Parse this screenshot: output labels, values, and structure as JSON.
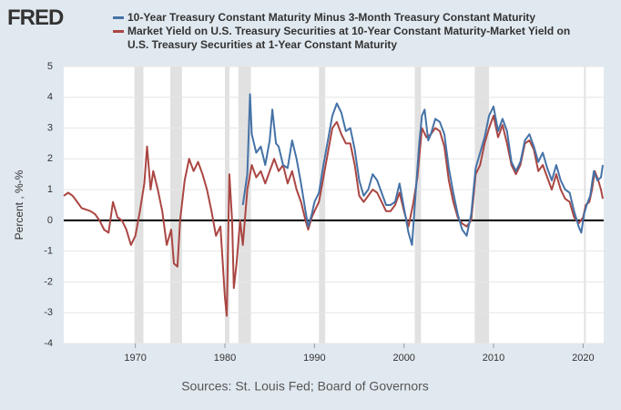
{
  "chart_data": {
    "type": "line",
    "logo": "FRED",
    "y_label": "Percent , %-%",
    "source": "Sources: St. Louis Fed; Board of Governors",
    "xlim": [
      1962,
      2022.3
    ],
    "xticks": [
      1970,
      1980,
      1990,
      2000,
      2010,
      2020
    ],
    "ylim": [
      -4,
      5
    ],
    "yticks": [
      -4,
      -3,
      -2,
      -1,
      0,
      1,
      2,
      3,
      4,
      5
    ],
    "grid": true,
    "recessions": [
      [
        1969.9,
        1970.9
      ],
      [
        1973.9,
        1975.2
      ],
      [
        1980.0,
        1980.5
      ],
      [
        1981.5,
        1982.9
      ],
      [
        1990.5,
        1991.2
      ],
      [
        2001.2,
        2001.9
      ],
      [
        2007.9,
        2009.5
      ],
      [
        2020.1,
        2020.3
      ]
    ],
    "series": [
      {
        "name": "10-Year Treasury Constant Maturity Minus 3-Month Treasury Constant Maturity",
        "color": "#4572a7",
        "x": [
          1982.0,
          1982.5,
          1982.8,
          1983.0,
          1983.5,
          1984.0,
          1984.5,
          1985.0,
          1985.3,
          1985.7,
          1986.0,
          1986.5,
          1987.0,
          1987.5,
          1988.0,
          1988.5,
          1989.0,
          1989.3,
          1989.7,
          1990.0,
          1990.5,
          1991.0,
          1991.5,
          1992.0,
          1992.5,
          1993.0,
          1993.5,
          1994.0,
          1994.5,
          1995.0,
          1995.5,
          1996.0,
          1996.5,
          1997.0,
          1997.5,
          1998.0,
          1998.5,
          1999.0,
          1999.5,
          2000.0,
          2000.5,
          2000.9,
          2001.3,
          2001.7,
          2002.0,
          2002.3,
          2002.7,
          2003.0,
          2003.5,
          2004.0,
          2004.5,
          2005.0,
          2005.5,
          2006.0,
          2006.5,
          2007.0,
          2007.5,
          2008.0,
          2008.5,
          2009.0,
          2009.5,
          2010.0,
          2010.5,
          2011.0,
          2011.5,
          2012.0,
          2012.5,
          2013.0,
          2013.5,
          2014.0,
          2014.5,
          2015.0,
          2015.5,
          2016.0,
          2016.5,
          2017.0,
          2017.5,
          2018.0,
          2018.5,
          2019.0,
          2019.5,
          2019.8,
          2020.1,
          2020.4,
          2020.8,
          2021.2,
          2021.6,
          2022.0,
          2022.2
        ],
        "values": [
          0.5,
          1.5,
          4.1,
          2.8,
          2.2,
          2.4,
          1.8,
          2.6,
          3.6,
          2.5,
          2.4,
          1.8,
          1.7,
          2.6,
          2.0,
          1.2,
          0.3,
          -0.2,
          0.2,
          0.6,
          0.9,
          1.8,
          2.6,
          3.4,
          3.8,
          3.5,
          2.9,
          3.0,
          2.3,
          1.3,
          0.8,
          1.0,
          1.5,
          1.3,
          0.9,
          0.5,
          0.5,
          0.6,
          1.2,
          0.4,
          -0.4,
          -0.8,
          0.9,
          2.5,
          3.4,
          3.6,
          2.6,
          2.8,
          3.3,
          3.2,
          2.8,
          1.7,
          0.9,
          0.2,
          -0.3,
          -0.5,
          0.2,
          1.7,
          2.2,
          2.7,
          3.4,
          3.7,
          2.9,
          3.3,
          2.9,
          1.9,
          1.6,
          1.9,
          2.6,
          2.8,
          2.4,
          1.9,
          2.2,
          1.7,
          1.3,
          1.8,
          1.3,
          1.0,
          0.9,
          0.3,
          -0.2,
          -0.4,
          0.2,
          0.5,
          0.8,
          1.6,
          1.3,
          1.4,
          1.8
        ]
      },
      {
        "name": "Market Yield on U.S. Treasury Securities at 10-Year Constant Maturity-Market Yield on U.S. Treasury Securities at 1-Year Constant Maturity",
        "color": "#aa4643",
        "x": [
          1962.0,
          1962.5,
          1963.0,
          1963.5,
          1964.0,
          1964.5,
          1965.0,
          1965.5,
          1966.0,
          1966.5,
          1967.0,
          1967.5,
          1968.0,
          1968.5,
          1969.0,
          1969.5,
          1970.0,
          1970.5,
          1971.0,
          1971.3,
          1971.7,
          1972.0,
          1972.5,
          1973.0,
          1973.5,
          1974.0,
          1974.3,
          1974.7,
          1975.0,
          1975.5,
          1976.0,
          1976.5,
          1977.0,
          1977.5,
          1978.0,
          1978.5,
          1979.0,
          1979.5,
          1980.0,
          1980.2,
          1980.5,
          1980.8,
          1981.0,
          1981.3,
          1981.7,
          1982.0,
          1982.5,
          1983.0,
          1983.5,
          1984.0,
          1984.5,
          1985.0,
          1985.5,
          1986.0,
          1986.5,
          1987.0,
          1987.5,
          1988.0,
          1988.5,
          1989.0,
          1989.3,
          1989.7,
          1990.0,
          1990.5,
          1991.0,
          1991.5,
          1992.0,
          1992.5,
          1993.0,
          1993.5,
          1994.0,
          1994.5,
          1995.0,
          1995.5,
          1996.0,
          1996.5,
          1997.0,
          1997.5,
          1998.0,
          1998.5,
          1999.0,
          1999.5,
          2000.0,
          2000.5,
          2001.0,
          2001.5,
          2002.0,
          2002.5,
          2003.0,
          2003.5,
          2004.0,
          2004.5,
          2005.0,
          2005.5,
          2006.0,
          2006.5,
          2007.0,
          2007.5,
          2008.0,
          2008.5,
          2009.0,
          2009.5,
          2010.0,
          2010.5,
          2011.0,
          2011.5,
          2012.0,
          2012.5,
          2013.0,
          2013.5,
          2014.0,
          2014.5,
          2015.0,
          2015.5,
          2016.0,
          2016.5,
          2017.0,
          2017.5,
          2018.0,
          2018.5,
          2019.0,
          2019.5,
          2020.0,
          2020.3,
          2020.7,
          2021.0,
          2021.3,
          2021.7,
          2022.0,
          2022.2
        ],
        "values": [
          0.8,
          0.9,
          0.8,
          0.6,
          0.4,
          0.35,
          0.3,
          0.2,
          0.0,
          -0.3,
          -0.4,
          0.6,
          0.1,
          0.0,
          -0.3,
          -0.8,
          -0.5,
          0.3,
          1.2,
          2.4,
          1.0,
          1.6,
          1.0,
          0.3,
          -0.8,
          -0.3,
          -1.4,
          -1.5,
          0.0,
          1.3,
          2.0,
          1.6,
          1.9,
          1.5,
          1.0,
          0.3,
          -0.5,
          -0.2,
          -2.5,
          -3.1,
          1.5,
          0.0,
          -2.2,
          -1.4,
          0.0,
          -0.8,
          1.0,
          1.8,
          1.4,
          1.6,
          1.2,
          1.6,
          2.0,
          1.6,
          1.8,
          1.2,
          1.6,
          1.0,
          0.6,
          0.0,
          -0.3,
          0.1,
          0.3,
          0.6,
          1.4,
          2.2,
          3.0,
          3.2,
          2.8,
          2.5,
          2.5,
          1.8,
          0.8,
          0.6,
          0.8,
          1.0,
          0.9,
          0.6,
          0.3,
          0.3,
          0.5,
          0.9,
          0.3,
          -0.2,
          0.5,
          1.4,
          3.0,
          2.7,
          2.8,
          3.0,
          2.9,
          2.4,
          1.3,
          0.6,
          0.1,
          -0.1,
          -0.2,
          0.0,
          1.5,
          1.8,
          2.5,
          3.0,
          3.4,
          2.7,
          3.1,
          2.5,
          1.8,
          1.5,
          1.8,
          2.5,
          2.6,
          2.3,
          1.6,
          1.8,
          1.4,
          1.0,
          1.5,
          1.0,
          0.7,
          0.6,
          0.1,
          -0.1,
          0.1,
          0.5,
          0.6,
          1.0,
          1.6,
          1.3,
          1.0,
          0.7
        ]
      }
    ]
  }
}
